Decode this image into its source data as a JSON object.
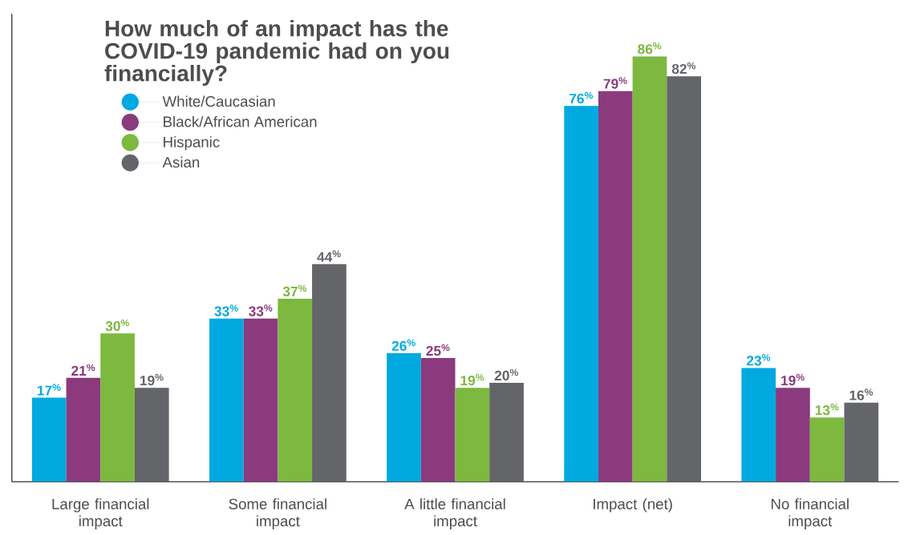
{
  "chart_data": {
    "type": "bar",
    "title": "How much of an impact has the COVID-19 pandemic had on you financially?",
    "categories": [
      "Large financial impact",
      "Some financial impact",
      "A little financial impact",
      "Impact (net)",
      "No financial impact"
    ],
    "series": [
      {
        "name": "White/Caucasian",
        "color": "#00a9e0",
        "values": [
          17,
          33,
          26,
          76,
          23
        ],
        "value_labels": [
          "17$^{%}$",
          "33$^{%}$",
          "26$^{%}$",
          "76$^{%}$",
          "23$^{%}$"
        ]
      },
      {
        "name": "Black/African American",
        "color": "#8b3a7e",
        "values": [
          21,
          33,
          25,
          79,
          19
        ],
        "value_labels": [
          "21$^{%}$",
          "33$^{%}$",
          "25$^{%}$",
          "79$^{%}$",
          "19$^{%}$"
        ]
      },
      {
        "name": "Hispanic",
        "color": "#7db83f",
        "values": [
          30,
          37,
          19,
          86,
          13
        ],
        "value_labels": [
          "30$^{%}$",
          "37$^{%}$",
          "19$^{%}$",
          "86$^{%}$",
          "13$^{%}$"
        ]
      },
      {
        "name": "Asian",
        "color": "#636569",
        "values": [
          19,
          44,
          20,
          82,
          16
        ],
        "value_labels": [
          "19$^{%}$",
          "44$^{%}$",
          "20$^{%}$",
          "82$^{%}$",
          "16$^{%}$"
        ]
      }
    ],
    "legend": "top left"
  }
}
